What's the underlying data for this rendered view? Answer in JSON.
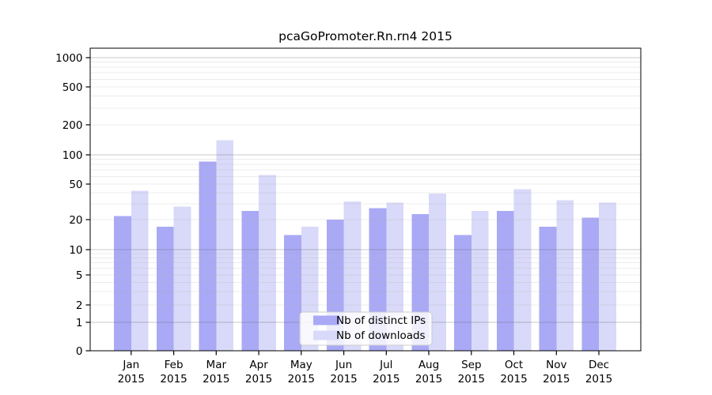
{
  "chart_data": {
    "type": "bar",
    "title": "pcaGoPromoter.Rn.rn4 2015",
    "categories": [
      "Jan",
      "Feb",
      "Mar",
      "Apr",
      "May",
      "Jun",
      "Jul",
      "Aug",
      "Sep",
      "Oct",
      "Nov",
      "Dec"
    ],
    "x_axis": {
      "tick_label_line2": "2015"
    },
    "series": [
      {
        "name": "Nb of distinct IPs",
        "color": "#a9a9f5",
        "values": [
          22,
          17,
          85,
          25,
          14,
          20,
          27,
          23,
          14,
          25,
          17,
          21
        ]
      },
      {
        "name": "Nb of downloads",
        "color": "#d9d9f9",
        "values": [
          42,
          28,
          140,
          62,
          17,
          32,
          31,
          39,
          25,
          44,
          33,
          31
        ]
      }
    ],
    "y_axis": {
      "scale": "log-like",
      "ticks": [
        0,
        1,
        2,
        5,
        10,
        20,
        50,
        100,
        200,
        500,
        1000
      ],
      "tick_labels": [
        "0",
        "1",
        "2",
        "5",
        "10",
        "20",
        "50",
        "100",
        "200",
        "500",
        "1000"
      ],
      "range": [
        0,
        1200
      ]
    },
    "grid": {
      "on": true,
      "major": [
        1,
        10,
        100,
        1000
      ],
      "minor": [
        2,
        3,
        4,
        5,
        6,
        7,
        8,
        9,
        20,
        30,
        40,
        50,
        60,
        70,
        80,
        90,
        200,
        300,
        400,
        500,
        600,
        700,
        800,
        900
      ]
    },
    "legend": {
      "position": "bottom-center-inside",
      "items": [
        "Nb of distinct IPs",
        "Nb of downloads"
      ]
    }
  },
  "colors": {
    "distinct_ips": "#a9a9f5",
    "downloads": "#d9d9f9",
    "axis": "#000000",
    "grid_major": "#646464",
    "grid_minor": "#b4b4b4",
    "legend_border": "#cccccc",
    "legend_background": "#ffffff",
    "background": "#ffffff"
  }
}
